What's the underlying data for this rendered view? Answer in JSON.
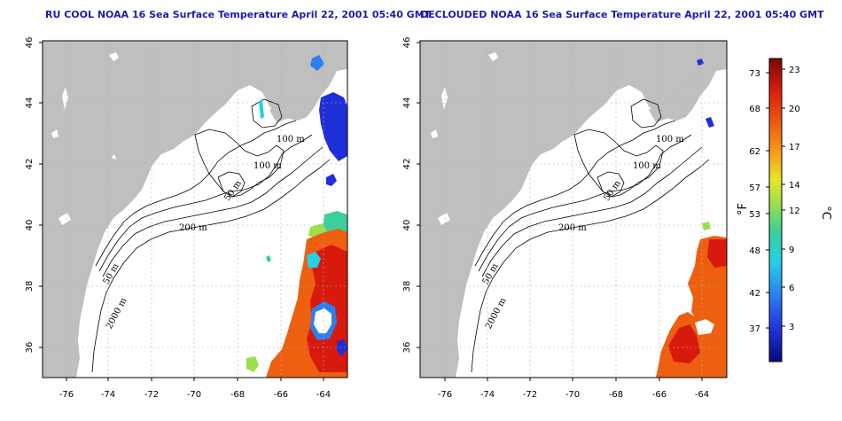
{
  "titles": {
    "left": "RU COOL NOAA 16 Sea Surface Temperature April 22, 2001 05:40 GMT",
    "right": "DECLOUDED NOAA 16 Sea Surface Temperature April 22, 2001 05:40 GMT"
  },
  "axes": {
    "lon_ticks": [
      "-76",
      "-74",
      "-72",
      "-70",
      "-68",
      "-66",
      "-64"
    ],
    "lat_ticks": [
      "46",
      "44",
      "42",
      "40",
      "38",
      "36"
    ]
  },
  "contour_labels": {
    "left": [
      "100 m",
      "100 m",
      "50 m",
      "200 m",
      "50 m",
      "2000 m"
    ],
    "right": [
      "100 m",
      "100 m",
      "50 m",
      "200 m",
      "50 m",
      "2000 m"
    ]
  },
  "colorbar": {
    "fahrenheit_ticks": [
      "73",
      "68",
      "62",
      "57",
      "53",
      "48",
      "42",
      "37"
    ],
    "celsius_ticks": [
      "23",
      "20",
      "17",
      "14",
      "12",
      "9",
      "6",
      "3"
    ],
    "unit_f": "°F",
    "unit_c": "°C",
    "colors": [
      "#0a0a7a",
      "#1f2fd8",
      "#2c7ff0",
      "#27d0e6",
      "#3ccf9a",
      "#9be04b",
      "#e8e628",
      "#f6a41a",
      "#ee5f10",
      "#d81a0d",
      "#7a0805"
    ]
  },
  "colors": {
    "land": "#bfbfbf",
    "ocean": "#ffffff",
    "title": "#1d1daa"
  }
}
